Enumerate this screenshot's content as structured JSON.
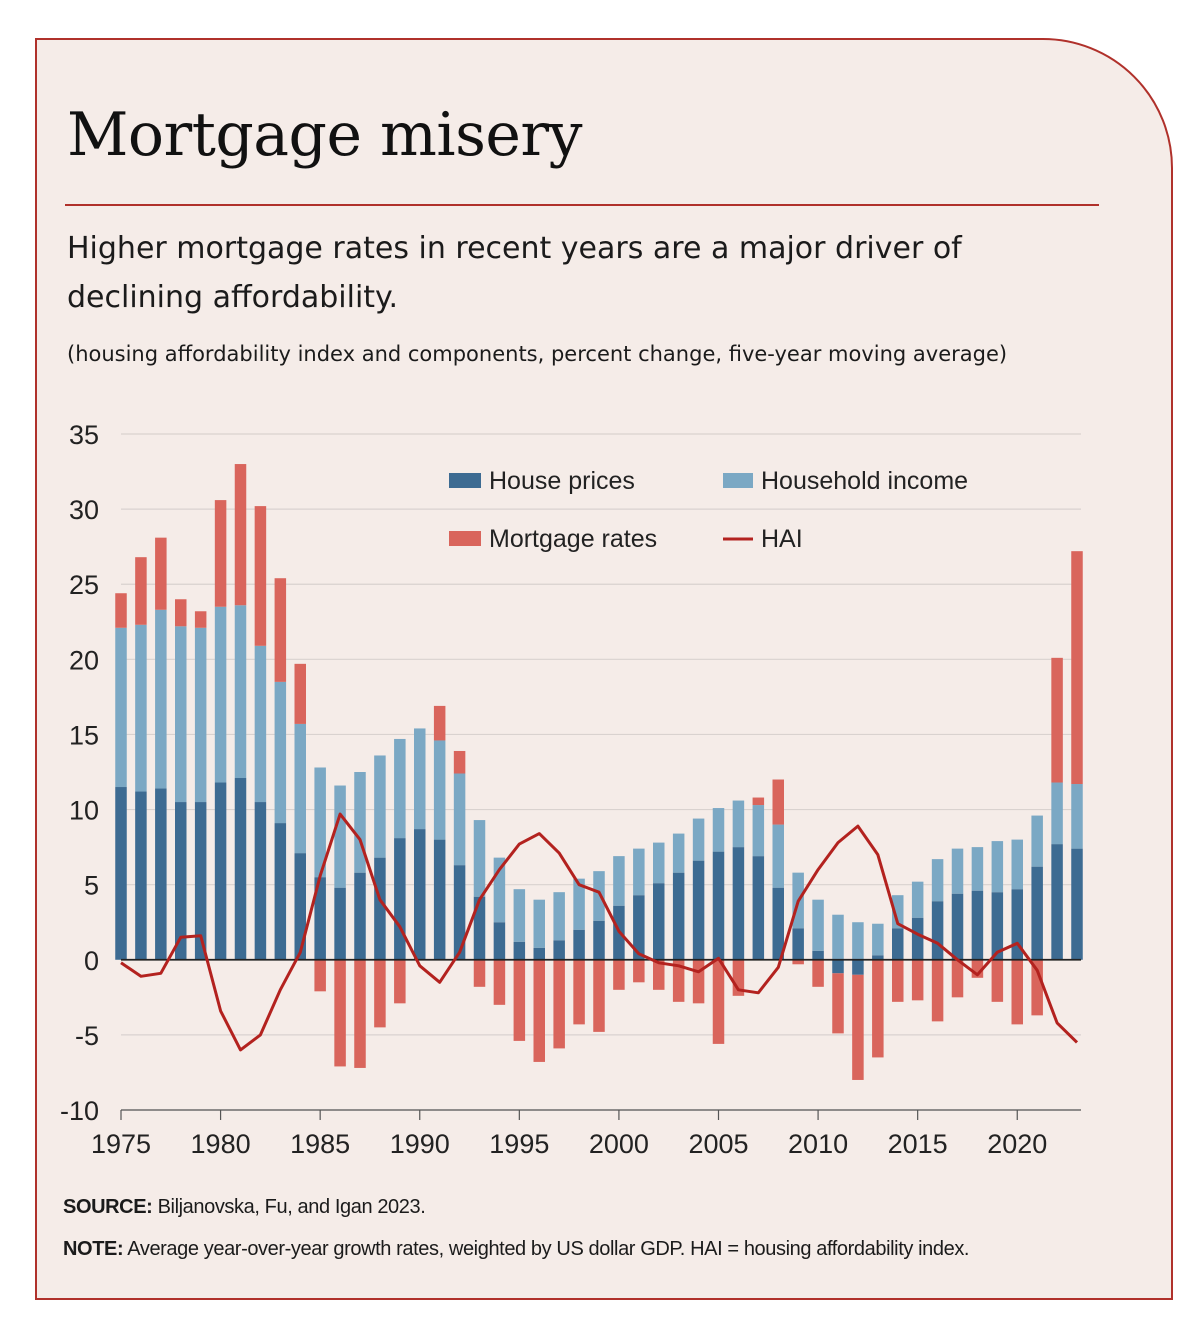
{
  "title": "Mortgage misery",
  "subtitle": "Higher mortgage rates in recent years are a major driver of declining affordability.",
  "units_note": "(housing affordability index and components, percent change, five-year moving average)",
  "source": {
    "label": "SOURCE:",
    "text": " Biljanovska, Fu, and Igan 2023."
  },
  "note": {
    "label": "NOTE:",
    "text": " Average year-over-year growth rates, weighted by US dollar GDP. HAI = housing affordability index."
  },
  "colors": {
    "house_prices": "#3d6b92",
    "household_income": "#7ba8c4",
    "mortgage_rates": "#d9655c",
    "hai": "#b3221f",
    "grid": "#d9d2cf",
    "zero": "#222222"
  },
  "chart_data": {
    "type": "bar",
    "stacked": true,
    "title": "Mortgage misery",
    "xlabel": "",
    "ylabel": "",
    "ylim": [
      -10,
      35
    ],
    "yticks": [
      35,
      30,
      25,
      20,
      15,
      10,
      5,
      0,
      -5,
      -10
    ],
    "ytick_labels": [
      "35",
      "30",
      "25",
      "20",
      "15",
      "10",
      "5",
      "0",
      "-5",
      "-10"
    ],
    "xticks": [
      1975,
      1980,
      1985,
      1990,
      1995,
      2000,
      2005,
      2010,
      2015,
      2020
    ],
    "xtick_labels": [
      "1975",
      "1980",
      "1985",
      "1990",
      "1995",
      "2000",
      "2005",
      "2010",
      "2015",
      "2020"
    ],
    "grid": true,
    "legend": [
      "House prices",
      "Household income",
      "Mortgage rates",
      "HAI"
    ],
    "categories": [
      1975,
      1976,
      1977,
      1978,
      1979,
      1980,
      1981,
      1982,
      1983,
      1984,
      1985,
      1986,
      1987,
      1988,
      1989,
      1990,
      1991,
      1992,
      1993,
      1994,
      1995,
      1996,
      1997,
      1998,
      1999,
      2000,
      2001,
      2002,
      2003,
      2004,
      2005,
      2006,
      2007,
      2008,
      2009,
      2010,
      2011,
      2012,
      2013,
      2014,
      2015,
      2016,
      2017,
      2018,
      2019,
      2020,
      2021,
      2022,
      2023
    ],
    "series": [
      {
        "name": "House prices",
        "kind": "bar",
        "values": [
          11.5,
          11.2,
          11.4,
          10.5,
          10.5,
          11.8,
          12.1,
          10.5,
          9.1,
          7.1,
          5.5,
          4.8,
          5.8,
          6.8,
          8.1,
          8.7,
          8.0,
          6.3,
          4.2,
          2.5,
          1.2,
          0.8,
          1.3,
          2.0,
          2.6,
          3.6,
          4.3,
          5.1,
          5.8,
          6.6,
          7.2,
          7.5,
          6.9,
          4.8,
          2.1,
          0.6,
          -0.9,
          -1.0,
          0.3,
          2.1,
          2.8,
          3.9,
          4.4,
          4.6,
          4.5,
          4.7,
          6.2,
          7.7,
          7.4
        ]
      },
      {
        "name": "Household income",
        "kind": "bar",
        "values": [
          10.6,
          11.1,
          11.9,
          11.7,
          11.6,
          11.7,
          11.5,
          10.4,
          9.4,
          8.6,
          7.3,
          6.8,
          6.7,
          6.8,
          6.6,
          6.7,
          6.6,
          6.1,
          5.1,
          4.3,
          3.5,
          3.2,
          3.2,
          3.4,
          3.3,
          3.3,
          3.1,
          2.7,
          2.6,
          2.8,
          2.9,
          3.1,
          3.4,
          4.2,
          3.7,
          3.4,
          3.0,
          2.5,
          2.1,
          2.2,
          2.4,
          2.8,
          3.0,
          2.9,
          3.4,
          3.3,
          3.4,
          4.1,
          4.3
        ]
      },
      {
        "name": "Mortgage rates",
        "kind": "bar",
        "values": [
          2.3,
          4.5,
          4.8,
          1.8,
          1.1,
          7.1,
          9.4,
          9.3,
          6.9,
          4.0,
          -2.1,
          -7.1,
          -7.2,
          -4.5,
          -2.9,
          0,
          2.3,
          1.5,
          -1.8,
          -3.0,
          -5.4,
          -6.8,
          -5.9,
          -4.3,
          -4.8,
          -2.0,
          -1.5,
          -2.0,
          -2.8,
          -2.9,
          -5.6,
          -2.4,
          0.5,
          3.0,
          -0.3,
          -1.8,
          -4.0,
          -7.0,
          -6.5,
          -2.8,
          -2.7,
          -4.1,
          -2.5,
          -1.2,
          -2.8,
          -4.3,
          -3.7,
          8.3,
          15.5
        ]
      },
      {
        "name": "HAI",
        "kind": "line",
        "values": [
          -0.2,
          -1.1,
          -0.9,
          1.5,
          1.6,
          -3.4,
          -6.0,
          -5.0,
          -2.0,
          0.5,
          5.6,
          9.7,
          8.0,
          4.0,
          2.2,
          -0.4,
          -1.5,
          0.5,
          4.0,
          6.0,
          7.7,
          8.4,
          7.1,
          5.0,
          4.5,
          1.9,
          0.4,
          -0.2,
          -0.4,
          -0.8,
          0.1,
          -2.0,
          -2.2,
          -0.5,
          3.9,
          6.0,
          7.8,
          8.9,
          7.0,
          2.4,
          1.7,
          1.1,
          0.0,
          -1.0,
          0.5,
          1.1,
          -0.7,
          -4.2,
          -5.5
        ]
      }
    ]
  }
}
